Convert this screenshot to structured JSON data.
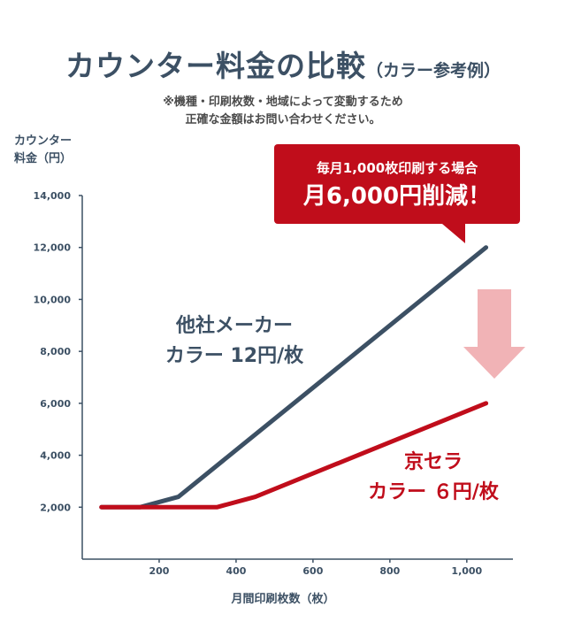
{
  "header": {
    "title": "カウンター料金の比較",
    "title_sub": "（カラー参考例）",
    "note_line1": "※機種・印刷枚数・地域によって変動するため",
    "note_line2": "正確な金額はお問い合わせください。"
  },
  "callout": {
    "line1": "毎月1,000枚印刷する場合",
    "line2": "月6,000円削減！"
  },
  "labels": {
    "other_line1": "他社メーカー",
    "other_line2": "カラー 12円/枚",
    "kyocera_line1": "京セラ",
    "kyocera_line2": "カラー ６円/枚"
  },
  "colors": {
    "other": "#3c5064",
    "kyocera": "#c00d1b",
    "arrow": "#f1b3b6"
  },
  "chart_data": {
    "type": "line",
    "xlabel": "月間印刷枚数（枚）",
    "ylabel_line1": "カウンター",
    "ylabel_line2": "料金（円）",
    "xlim": [
      0,
      1120
    ],
    "ylim": [
      0,
      14000
    ],
    "x_ticks": [
      200,
      400,
      600,
      800,
      1000
    ],
    "x_tick_labels": [
      "200",
      "400",
      "600",
      "800",
      "1,000"
    ],
    "y_ticks": [
      2000,
      4000,
      6000,
      8000,
      10000,
      12000,
      14000
    ],
    "y_tick_labels": [
      "2,000",
      "4,000",
      "6,000",
      "8,000",
      "10,000",
      "12,000",
      "14,000"
    ],
    "series": [
      {
        "key": "other",
        "x": [
          50,
          150,
          250,
          1050
        ],
        "y": [
          2000,
          2000,
          2400,
          12000
        ]
      },
      {
        "key": "kyocera",
        "x": [
          50,
          350,
          450,
          1050
        ],
        "y": [
          2000,
          2000,
          2400,
          6000
        ]
      }
    ]
  }
}
